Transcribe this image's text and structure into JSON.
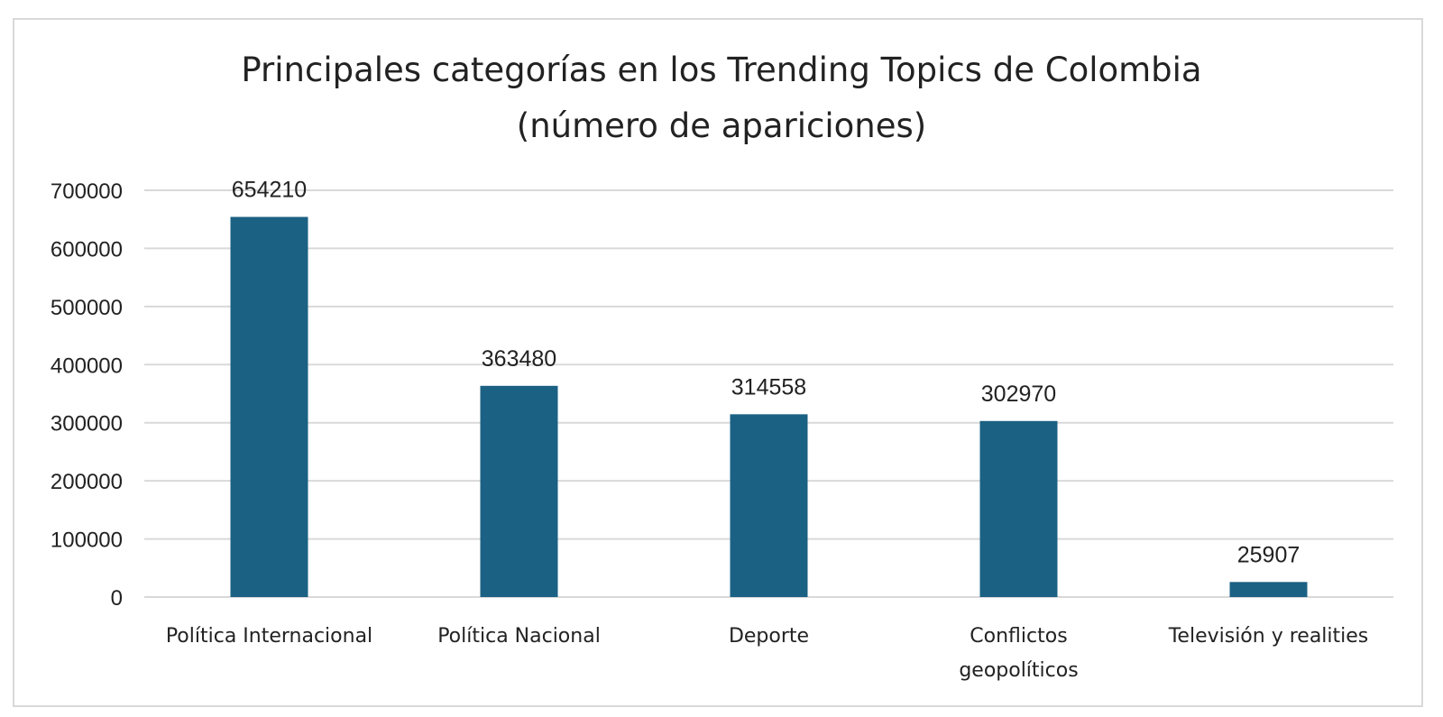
{
  "chart_data": {
    "type": "bar",
    "title_lines": [
      "Principales categorías en los Trending Topics de Colombia",
      "(número de apariciones)"
    ],
    "categories": [
      [
        "Política Internacional"
      ],
      [
        "Política Nacional"
      ],
      [
        "Deporte"
      ],
      [
        "Conflictos",
        "geopolíticos"
      ],
      [
        "Televisión y realities"
      ]
    ],
    "values": [
      654210,
      363480,
      314558,
      302970,
      25907
    ],
    "ylim": [
      0,
      700000
    ],
    "yticks": [
      0,
      100000,
      200000,
      300000,
      400000,
      500000,
      600000,
      700000
    ],
    "xlabel": "",
    "ylabel": "",
    "grid": true,
    "legend": "none",
    "bar_color": "#1b6184",
    "grid_color": "#d9d9d9"
  }
}
